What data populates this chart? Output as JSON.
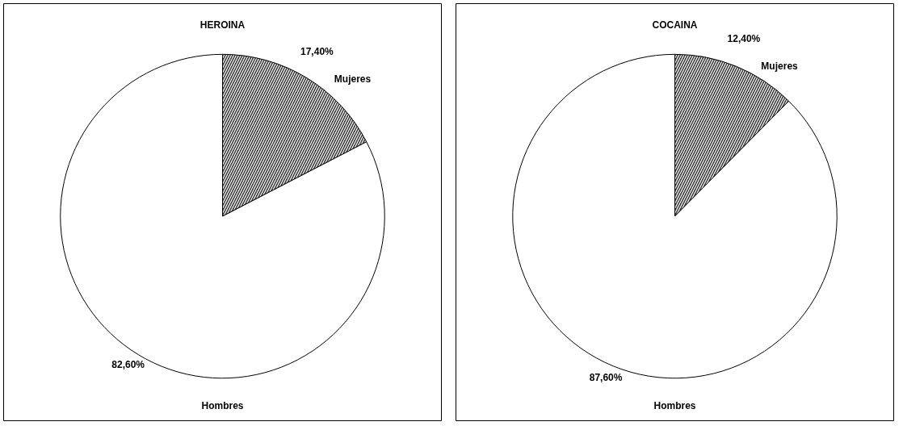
{
  "chart_data": [
    {
      "type": "pie",
      "title": "HEROINA",
      "categories": [
        "Mujeres",
        "Hombres"
      ],
      "values": [
        17.4,
        82.6
      ],
      "colors": [
        "#3a3a3a",
        "#ffffff"
      ],
      "value_labels": [
        "17,40%",
        "82,60%"
      ]
    },
    {
      "type": "pie",
      "title": "COCAINA",
      "categories": [
        "Mujeres",
        "Hombres"
      ],
      "values": [
        12.4,
        87.6
      ],
      "colors": [
        "#3a3a3a",
        "#ffffff"
      ],
      "value_labels": [
        "12,40%",
        "87,60%"
      ]
    }
  ]
}
